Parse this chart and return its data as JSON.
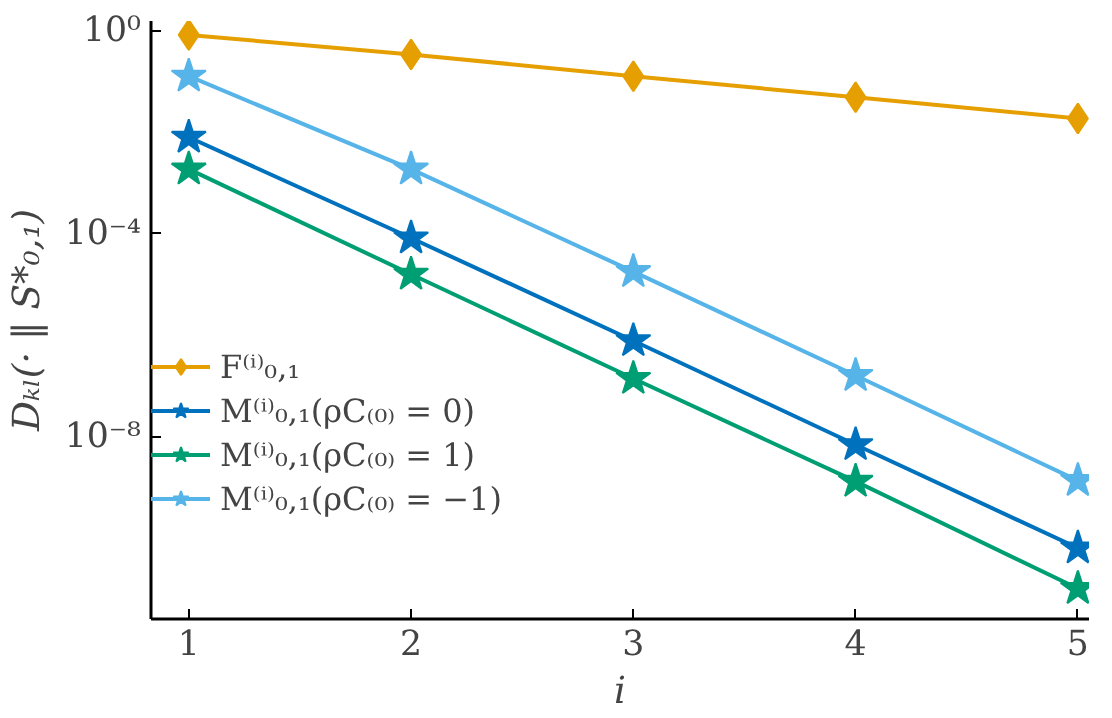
{
  "chart_data": {
    "type": "line",
    "xlabel": "i",
    "ylabel": "Dₖₗ(· ‖ S*₀,₁)",
    "x": [
      1,
      2,
      3,
      4,
      5
    ],
    "xlim": [
      0.83,
      5.05
    ],
    "xticks": [
      1,
      2,
      3,
      4,
      5
    ],
    "ylim": [
      2.5e-12,
      1.6
    ],
    "yticks": [
      {
        "value": 1,
        "label": "10⁰"
      },
      {
        "value": 0.0001,
        "label": "10⁻⁴"
      },
      {
        "value": 1e-08,
        "label": "10⁻⁸"
      }
    ],
    "log": "y",
    "grid": false,
    "legend": "left",
    "series": [
      {
        "name": "F⁽ⁱ⁾₀,₁",
        "color": "#e69f00",
        "marker": "diamond",
        "values": [
          0.85,
          0.35,
          0.13,
          0.05,
          0.019
        ]
      },
      {
        "name": "M⁽ⁱ⁾₀,₁(ρC₍₀₎ = 0)",
        "color": "#0072bd",
        "marker": "star",
        "values": [
          0.0081,
          8.3e-05,
          7.8e-07,
          6.9e-09,
          6.3e-11
        ]
      },
      {
        "name": "M⁽ⁱ⁾₀,₁(ρC₍₀₎ = 1)",
        "color": "#009e73",
        "marker": "star",
        "values": [
          0.0019,
          1.6e-05,
          1.4e-07,
          1.3e-09,
          1e-11
        ]
      },
      {
        "name": "M⁽ⁱ⁾₀,₁(ρC₍₀₎ = −1)",
        "color": "#56b4e9",
        "marker": "star",
        "values": [
          0.13,
          0.0019,
          1.8e-05,
          1.6e-07,
          1.35e-09
        ]
      }
    ]
  }
}
